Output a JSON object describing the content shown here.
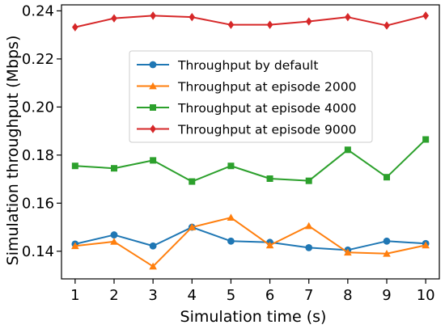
{
  "chart_data": {
    "type": "line",
    "xlabel": "Simulation time (s)",
    "ylabel": "Simulation throughput (Mbps)",
    "x": [
      1,
      2,
      3,
      4,
      5,
      6,
      7,
      8,
      9,
      10
    ],
    "x_ticks": [
      "1",
      "2",
      "3",
      "4",
      "5",
      "6",
      "7",
      "8",
      "9",
      "10"
    ],
    "y_ticks": [
      0.14,
      0.16,
      0.18,
      0.2,
      0.22,
      0.24
    ],
    "y_tick_labels": [
      "0.14",
      "0.16",
      "0.18",
      "0.20",
      "0.22",
      "0.24"
    ],
    "xlim": [
      0.65,
      10.35
    ],
    "ylim": [
      0.1285,
      0.2425
    ],
    "grid": false,
    "legend_position": "upper-center",
    "series": [
      {
        "name": "Throughput by default",
        "color": "#1f77b4",
        "marker": "circle",
        "values": [
          0.143,
          0.1468,
          0.1422,
          0.15,
          0.1442,
          0.1437,
          0.1415,
          0.1405,
          0.1442,
          0.1432
        ]
      },
      {
        "name": "Throughput at episode 2000",
        "color": "#ff7f0e",
        "marker": "triangle",
        "values": [
          0.1422,
          0.144,
          0.1337,
          0.15,
          0.154,
          0.1425,
          0.1505,
          0.1395,
          0.139,
          0.1425
        ]
      },
      {
        "name": "Throughput at episode 4000",
        "color": "#2ca02c",
        "marker": "square",
        "values": [
          0.1755,
          0.1745,
          0.1778,
          0.169,
          0.1755,
          0.1702,
          0.1693,
          0.1822,
          0.1708,
          0.1865
        ]
      },
      {
        "name": "Throughput at episode 9000",
        "color": "#d62728",
        "marker": "diamond",
        "values": [
          0.2332,
          0.2369,
          0.238,
          0.2374,
          0.2342,
          0.2342,
          0.2356,
          0.2374,
          0.2339,
          0.238
        ]
      }
    ]
  }
}
